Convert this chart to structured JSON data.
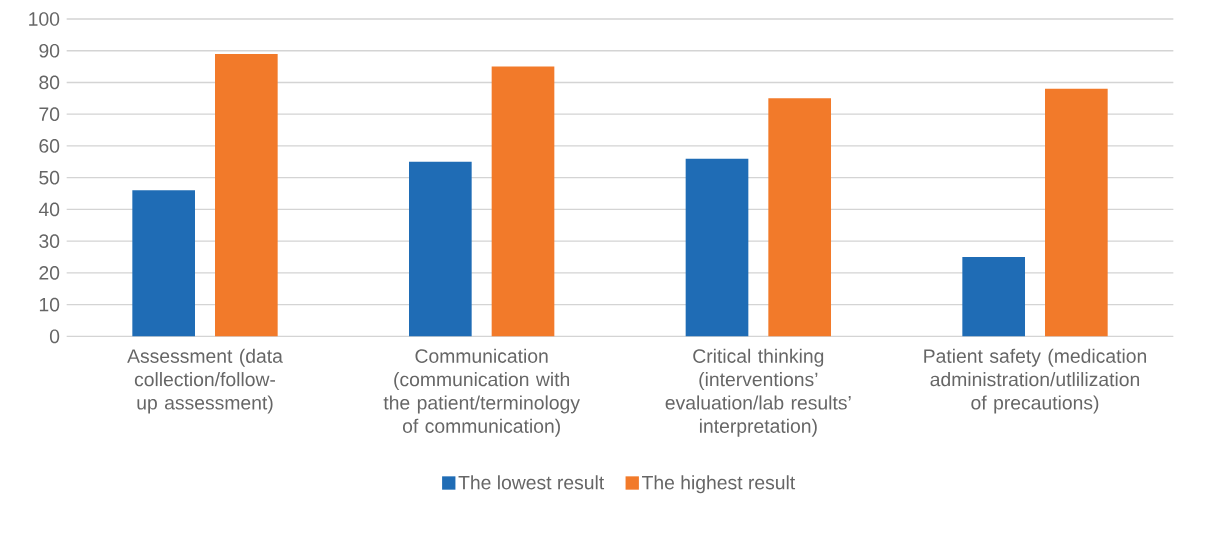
{
  "chart_data": {
    "type": "bar",
    "categories": [
      "Assessment (data collection/follow-up assessment)",
      "Communication (communication with the patient/terminology of communication)",
      "Critical thinking (interventions’ evaluation/lab results’ interpretation)",
      "Patient safety (medication administration/utlilization of precautions)"
    ],
    "series": [
      {
        "name": "The lowest result",
        "color": "#1f6cb5",
        "values": [
          46,
          55,
          56,
          25
        ]
      },
      {
        "name": "The highest result",
        "color": "#f27a2a",
        "values": [
          89,
          85,
          75,
          78
        ]
      }
    ],
    "ylim": [
      0,
      100
    ],
    "yticks": [
      0,
      10,
      20,
      30,
      40,
      50,
      60,
      70,
      80,
      90,
      100
    ],
    "grid": "y",
    "legend": "bottom"
  }
}
